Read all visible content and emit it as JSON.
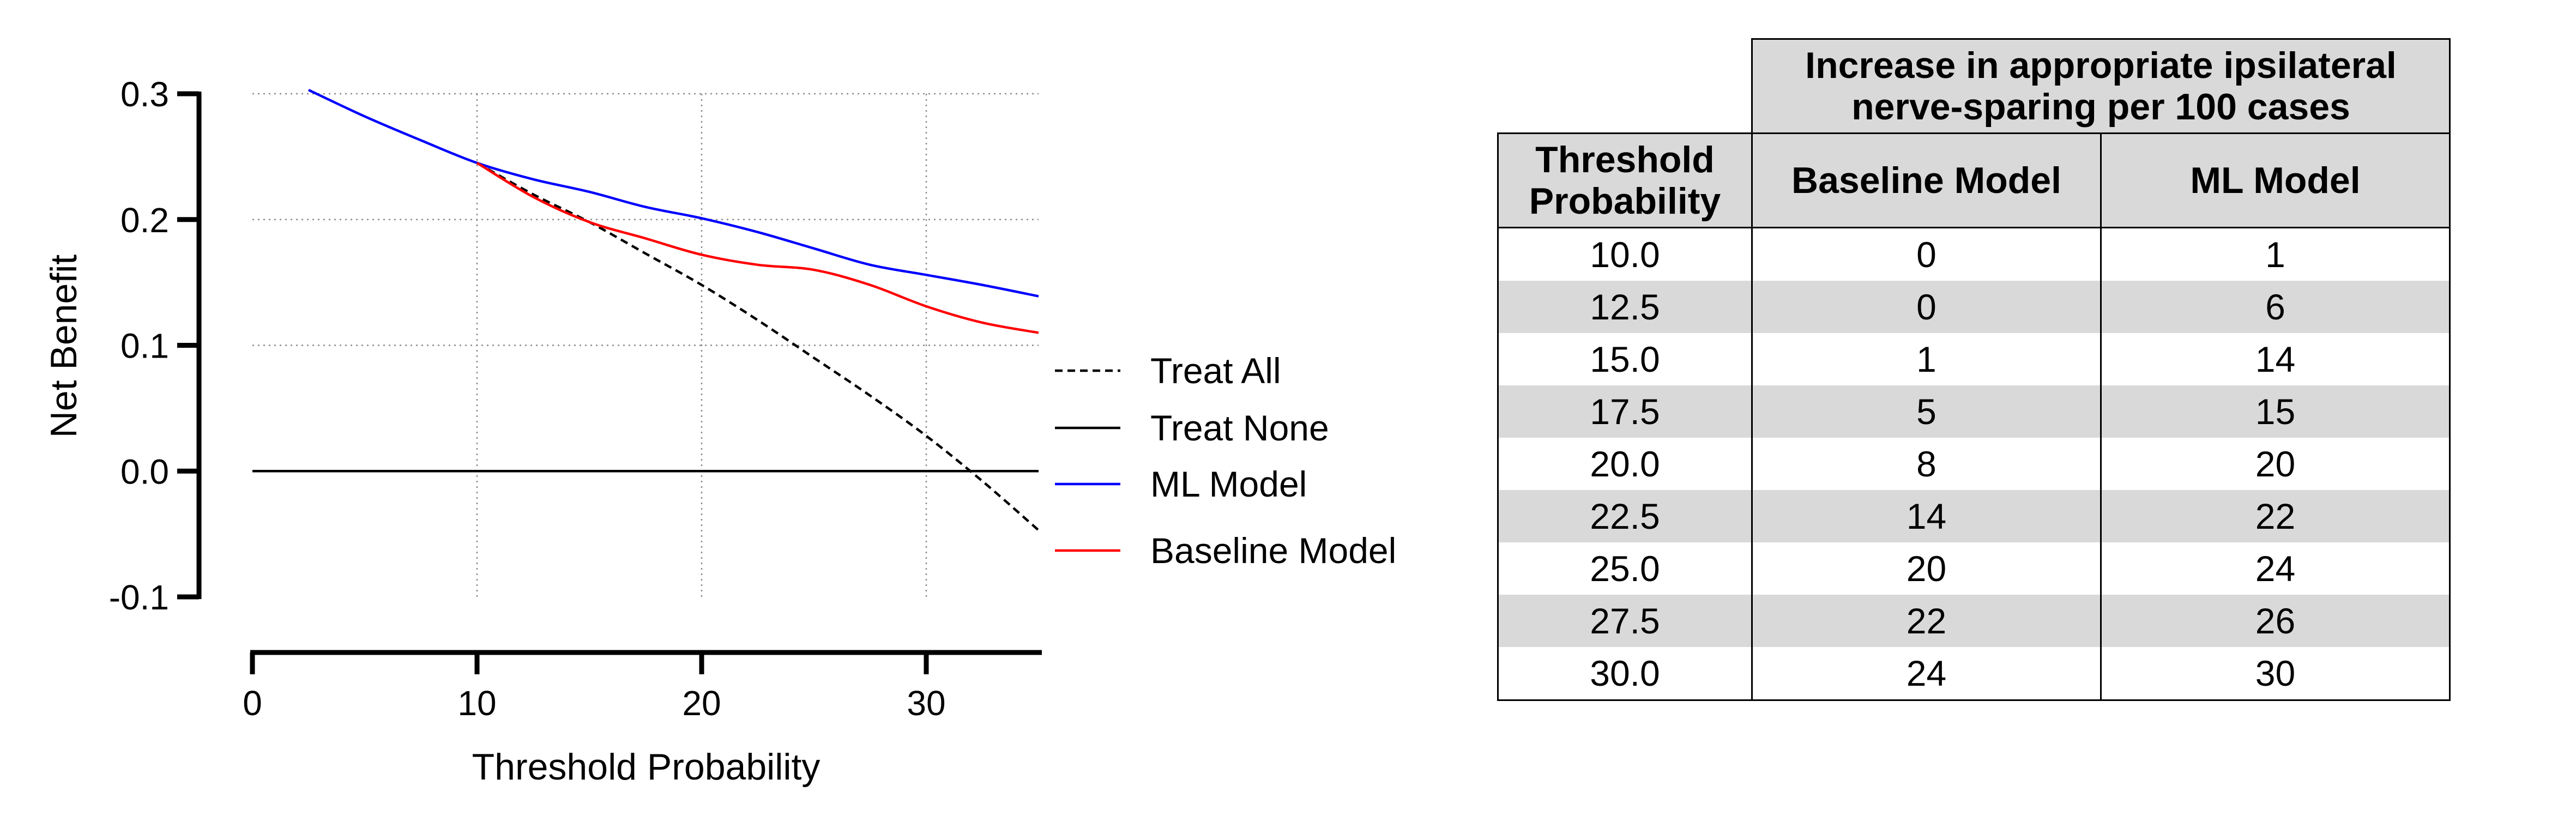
{
  "chart_data": {
    "type": "line",
    "xlabel": "Threshold Probability",
    "ylabel": "Net Benefit",
    "xlim": [
      0,
      35
    ],
    "ylim": [
      -0.1,
      0.3
    ],
    "xticks": [
      "0",
      "10",
      "20",
      "30"
    ],
    "yticks": [
      "0.3",
      "0.2",
      "0.1",
      "0.0",
      "-0.1"
    ],
    "grid": true,
    "legend_position": "right",
    "series": [
      {
        "name": "Treat All",
        "style": "dashed",
        "color": "#000000",
        "x": [
          10,
          12.5,
          15,
          17.5,
          20,
          22.5,
          25,
          27.5,
          30,
          32.5,
          35
        ],
        "y": [
          0.245,
          0.22,
          0.198,
          0.173,
          0.148,
          0.12,
          0.09,
          0.06,
          0.028,
          -0.008,
          -0.047
        ]
      },
      {
        "name": "Treat None",
        "style": "solid",
        "color": "#000000",
        "x": [
          0,
          35
        ],
        "y": [
          0.0,
          0.0
        ]
      },
      {
        "name": "ML Model",
        "style": "solid",
        "color": "#0000ff",
        "x": [
          2.5,
          5,
          7.5,
          10,
          12.5,
          15,
          17.5,
          20,
          22.5,
          25,
          27.5,
          30,
          32.5,
          35
        ],
        "y": [
          0.303,
          0.282,
          0.263,
          0.245,
          0.232,
          0.222,
          0.21,
          0.201,
          0.19,
          0.177,
          0.164,
          0.156,
          0.148,
          0.139
        ]
      },
      {
        "name": "Baseline Model",
        "style": "solid",
        "color": "#ff0000",
        "x": [
          10,
          12.5,
          15,
          17.5,
          20,
          22.5,
          25,
          27.5,
          30,
          32.5,
          35
        ],
        "y": [
          0.245,
          0.218,
          0.198,
          0.185,
          0.172,
          0.164,
          0.16,
          0.148,
          0.131,
          0.118,
          0.11
        ]
      }
    ]
  },
  "table": {
    "super_header": "Increase in appropriate ipsilateral nerve-sparing per 100 cases",
    "headers": [
      "Threshold Probability",
      "Baseline Model",
      "ML Model"
    ],
    "rows": [
      [
        "10.0",
        "0",
        "1"
      ],
      [
        "12.5",
        "0",
        "6"
      ],
      [
        "15.0",
        "1",
        "14"
      ],
      [
        "17.5",
        "5",
        "15"
      ],
      [
        "20.0",
        "8",
        "20"
      ],
      [
        "22.5",
        "14",
        "22"
      ],
      [
        "25.0",
        "20",
        "24"
      ],
      [
        "27.5",
        "22",
        "26"
      ],
      [
        "30.0",
        "24",
        "30"
      ]
    ]
  }
}
